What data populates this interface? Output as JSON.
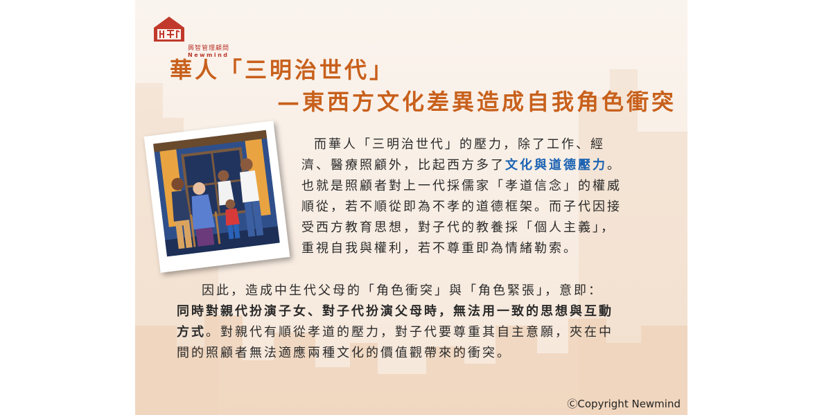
{
  "logo": {
    "cn": "興智管理顧問",
    "en": "Newmind"
  },
  "title": {
    "line1": "華人「三明治世代」",
    "line2": "—東西方文化差異造成自我角色衝突"
  },
  "para1": {
    "l1": "而華人「三明治世代」的壓力，除了工作、經",
    "l2_pre": "濟、醫療照顧外，比起西方多了",
    "l2_hl": "文化與道德壓力",
    "l2_post": "。",
    "l3": "也就是照顧者對上一代採儒家「孝道信念」的權威",
    "l4": "順從，若不順從即為不孝的道德框架。而子代因接",
    "l5": "受西方教育思想，對子代的教養採「個人主義」，",
    "l6": "重視自我與權利，若不尊重即為情緒勒索。"
  },
  "para2": {
    "l1": "因此，造成中生代父母的「角色衝突」與「角色緊張」，意即：",
    "l2_bold": "同時對親代扮演子女、對子代扮演父母時，無法用一致的思想與互動",
    "l3_bold": "方式",
    "l3_rest": "。對親代有順從孝道的壓力，對子代要尊重其自主意願，夾在中",
    "l4": "間的照顧者無法適應兩種文化的價值觀帶來的衝突。"
  },
  "copyright": "ⒸCopyright Newmind",
  "colors": {
    "title": "#c8601c",
    "highlight": "#1a62b3",
    "logo": "#b8362a"
  }
}
